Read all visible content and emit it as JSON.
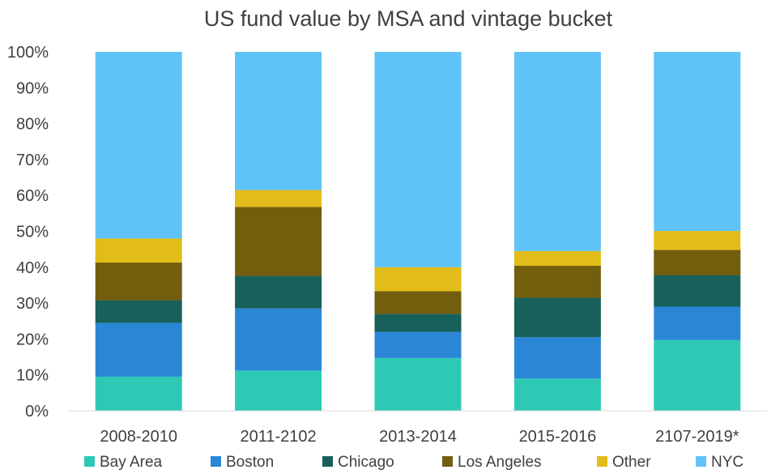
{
  "chart_data": {
    "type": "bar",
    "stacked": true,
    "percent": true,
    "title": "US fund value by MSA and vintage bucket",
    "xlabel": "",
    "ylabel": "",
    "ylim": [
      0,
      100
    ],
    "yticks": [
      "0%",
      "10%",
      "20%",
      "30%",
      "40%",
      "50%",
      "60%",
      "70%",
      "80%",
      "90%",
      "100%"
    ],
    "grid": false,
    "legend_position": "bottom",
    "categories": [
      "2008-2010",
      "2011-2102",
      "2013-2014",
      "2015-2016",
      "2107-2019*"
    ],
    "series": [
      {
        "name": "Bay Area",
        "color": "#2ec9b4",
        "values": [
          9.5,
          11.2,
          14.7,
          9.0,
          19.7
        ]
      },
      {
        "name": "Boston",
        "color": "#2b86d6",
        "values": [
          15.0,
          17.3,
          7.3,
          11.5,
          9.3
        ]
      },
      {
        "name": "Chicago",
        "color": "#17615a",
        "values": [
          6.3,
          9.1,
          5.0,
          11.0,
          8.8
        ]
      },
      {
        "name": "Los Angeles",
        "color": "#735e0e",
        "values": [
          10.5,
          19.2,
          6.3,
          8.9,
          7.0
        ]
      },
      {
        "name": "Other",
        "color": "#e2bd1a",
        "values": [
          6.7,
          4.7,
          6.7,
          4.1,
          5.3
        ]
      },
      {
        "name": "NYC",
        "color": "#60c3f7",
        "values": [
          52.0,
          38.5,
          60.0,
          55.5,
          49.9
        ]
      }
    ]
  }
}
